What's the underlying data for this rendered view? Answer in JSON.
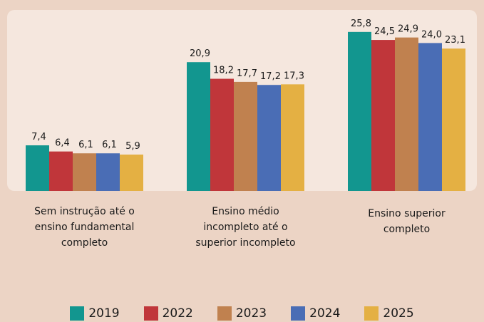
{
  "chart_data": {
    "type": "bar",
    "categories": [
      "Sem instrução até o ensino fundamental completo",
      "Ensino médio incompleto até o superior incompleto",
      "Ensino superior completo"
    ],
    "series": [
      {
        "name": "2019",
        "color": "#12968f",
        "values": [
          7.4,
          20.9,
          25.8
        ],
        "value_labels": [
          "7,4",
          "20,9",
          "25,8"
        ]
      },
      {
        "name": "2022",
        "color": "#c0363a",
        "values": [
          6.4,
          18.2,
          24.5
        ],
        "value_labels": [
          "6,4",
          "18,2",
          "24,5"
        ]
      },
      {
        "name": "2023",
        "color": "#c0814f",
        "values": [
          6.1,
          17.7,
          24.9
        ],
        "value_labels": [
          "6,1",
          "17,7",
          "24,9"
        ]
      },
      {
        "name": "2024",
        "color": "#4a6db5",
        "values": [
          6.1,
          17.2,
          24.0
        ],
        "value_labels": [
          "6,1",
          "17,2",
          "24,0"
        ]
      },
      {
        "name": "2025",
        "color": "#e4b043",
        "values": [
          5.9,
          17.3,
          23.1
        ],
        "value_labels": [
          "5,9",
          "17,3",
          "23,1"
        ]
      }
    ],
    "legend": "bottom"
  }
}
